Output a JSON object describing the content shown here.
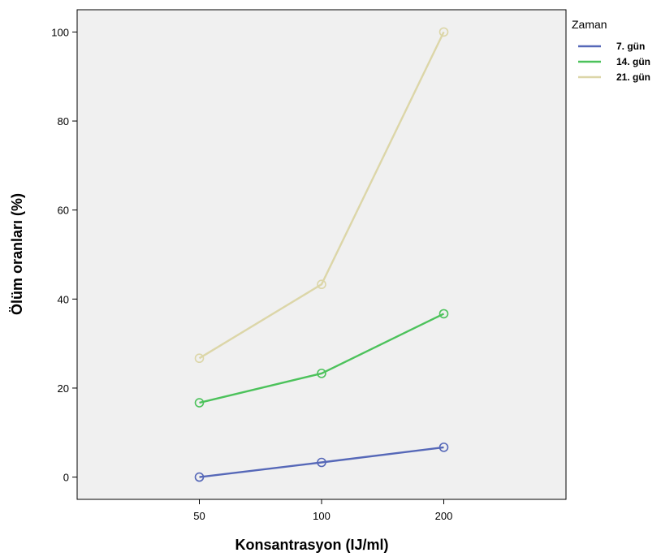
{
  "chart_data": {
    "type": "line",
    "title": "",
    "xlabel": "Konsantrasyon (IJ/ml)",
    "ylabel": "Ölüm oranları (%)",
    "categories": [
      "50",
      "100",
      "200"
    ],
    "ylim": [
      -5,
      105
    ],
    "yticks": [
      0,
      20,
      40,
      60,
      80,
      100
    ],
    "grid": false,
    "plot_background": "#f0f0f0",
    "legend": {
      "title": "Zaman",
      "placement": "outside-top-right"
    },
    "series": [
      {
        "name": "7. gün",
        "color": "#5668b8",
        "values": [
          0,
          3.3,
          6.7
        ]
      },
      {
        "name": "14. gün",
        "color": "#4cc25b",
        "values": [
          16.7,
          23.3,
          36.7
        ]
      },
      {
        "name": "21. gün",
        "color": "#dcd6a8",
        "values": [
          26.7,
          43.3,
          100
        ]
      }
    ]
  }
}
